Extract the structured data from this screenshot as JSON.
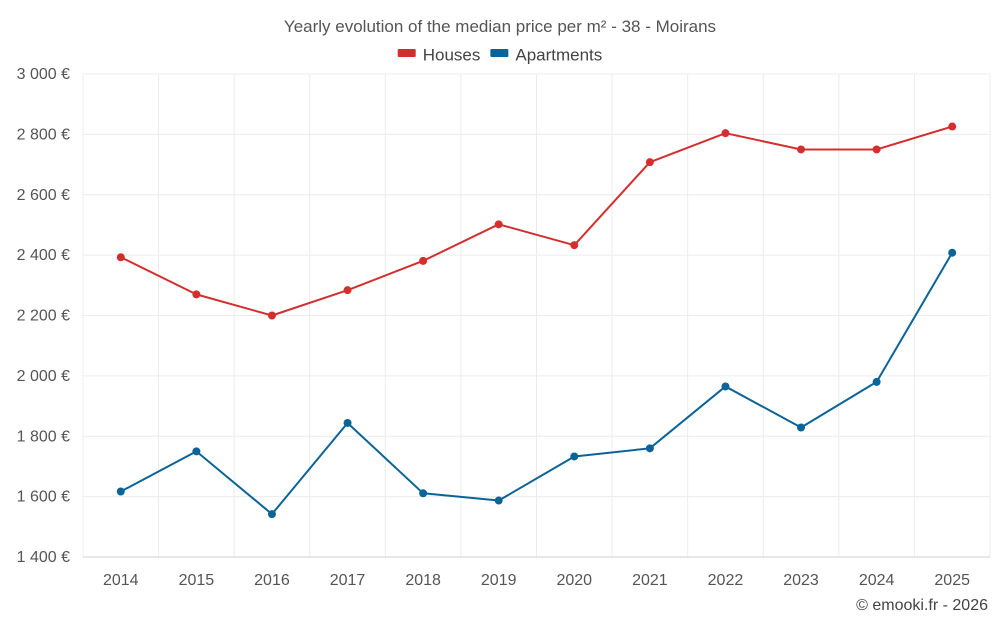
{
  "chart_data": {
    "type": "line",
    "title": "Yearly evolution of the median price per m² - 38 - Moirans",
    "categories": [
      "2014",
      "2015",
      "2016",
      "2017",
      "2018",
      "2019",
      "2020",
      "2021",
      "2022",
      "2023",
      "2024",
      "2025"
    ],
    "series": [
      {
        "name": "Houses",
        "color": "#d32f2f",
        "values": [
          2393,
          2270,
          2200,
          2284,
          2381,
          2502,
          2433,
          2708,
          2804,
          2750,
          2750,
          2826
        ]
      },
      {
        "name": "Apartments",
        "color": "#0b6497",
        "values": [
          1617,
          1750,
          1542,
          1844,
          1611,
          1587,
          1733,
          1760,
          1965,
          1829,
          1980,
          2408
        ]
      }
    ],
    "y_ticks": [
      1400,
      1600,
      1800,
      2000,
      2200,
      2400,
      2600,
      2800,
      3000
    ],
    "y_tick_labels": [
      "1 400 €",
      "1 600 €",
      "1 800 €",
      "2 000 €",
      "2 200 €",
      "2 400 €",
      "2 600 €",
      "2 800 €",
      "3 000 €"
    ],
    "ylim": [
      1400,
      3000
    ],
    "xlabel": "",
    "ylabel": "",
    "legend_position": "top-center",
    "grid": true
  },
  "footer": {
    "copyright": "© emooki.fr - 2026"
  }
}
